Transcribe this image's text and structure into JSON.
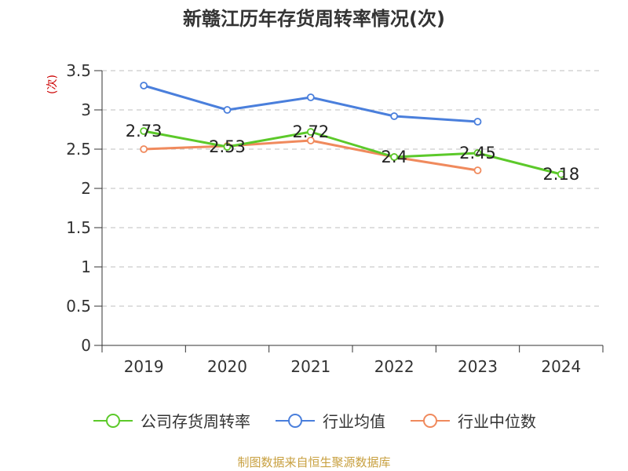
{
  "title": "新赣江历年存货周转率情况(次)",
  "y_unit": "(次)",
  "source_note": "制图数据来自恒生聚源数据库",
  "colors": {
    "company": "#5cc92a",
    "industry_avg": "#4a7fdc",
    "industry_median": "#f08a5d",
    "grid": "#cccccc",
    "axis": "#333333",
    "source": "#c8a040"
  },
  "chart_data": {
    "type": "line",
    "title": "新赣江历年存货周转率情况(次)",
    "ylabel": "(次)",
    "xlabel": "",
    "categories": [
      "2019",
      "2020",
      "2021",
      "2022",
      "2023",
      "2024"
    ],
    "ylim": [
      0,
      3.5
    ],
    "yticks": [
      0,
      0.5,
      1,
      1.5,
      2,
      2.5,
      3,
      3.5
    ],
    "ytick_labels": [
      "0",
      "0.5",
      "1",
      "1.5",
      "2",
      "2.5",
      "3",
      "3.5"
    ],
    "grid": true,
    "legend_position": "bottom",
    "series": [
      {
        "name": "公司存货周转率",
        "values": [
          2.73,
          2.53,
          2.72,
          2.4,
          2.45,
          2.18
        ],
        "data_labels": [
          "2.73",
          "2.53",
          "2.72",
          "2.4",
          "2.45",
          "2.18"
        ],
        "color": "#5cc92a"
      },
      {
        "name": "行业均值",
        "values": [
          3.31,
          3.0,
          3.16,
          2.92,
          2.85,
          null
        ],
        "color": "#4a7fdc"
      },
      {
        "name": "行业中位数",
        "values": [
          2.5,
          2.54,
          2.61,
          2.4,
          2.23,
          null
        ],
        "color": "#f08a5d"
      }
    ]
  }
}
